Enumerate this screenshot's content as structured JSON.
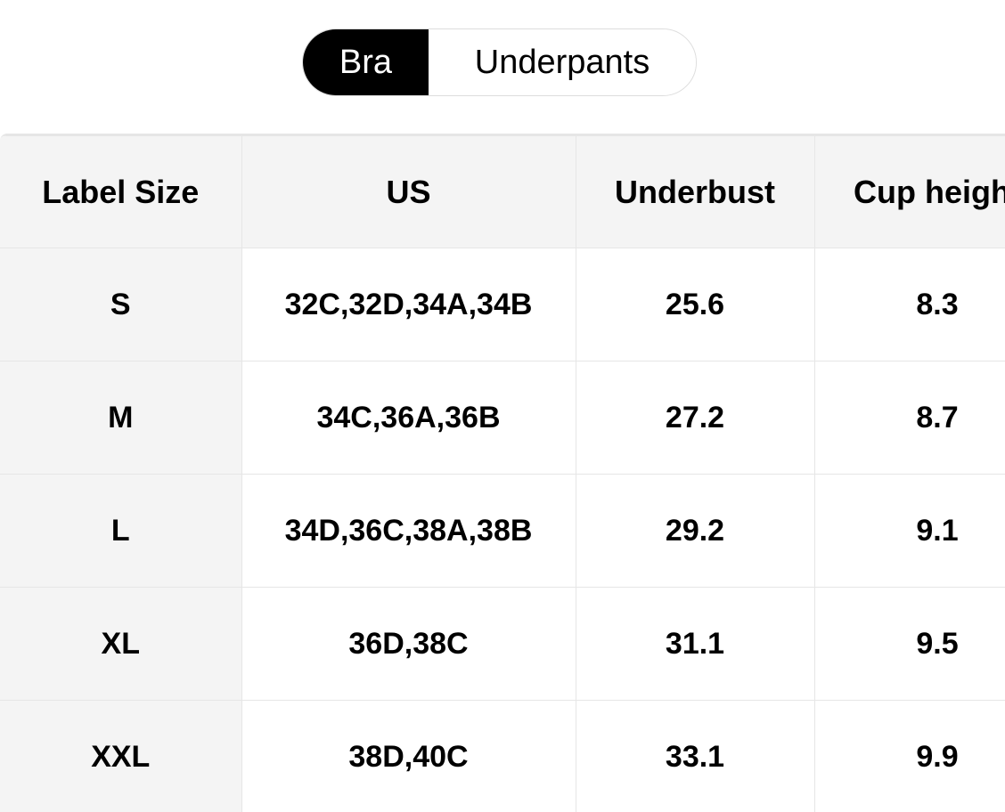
{
  "tabs": [
    {
      "label": "Bra",
      "active": true
    },
    {
      "label": "Underpants",
      "active": false
    }
  ],
  "table": {
    "headers": [
      "Label Size",
      "US",
      "Underbust",
      "Cup height"
    ],
    "rows": [
      [
        "S",
        "32C,32D,34A,34B",
        "25.6",
        "8.3"
      ],
      [
        "M",
        "34C,36A,36B",
        "27.2",
        "8.7"
      ],
      [
        "L",
        "34D,36C,38A,38B",
        "29.2",
        "9.1"
      ],
      [
        "XL",
        "36D,38C",
        "31.1",
        "9.5"
      ],
      [
        "XXL",
        "38D,40C",
        "33.1",
        "9.9"
      ]
    ]
  }
}
